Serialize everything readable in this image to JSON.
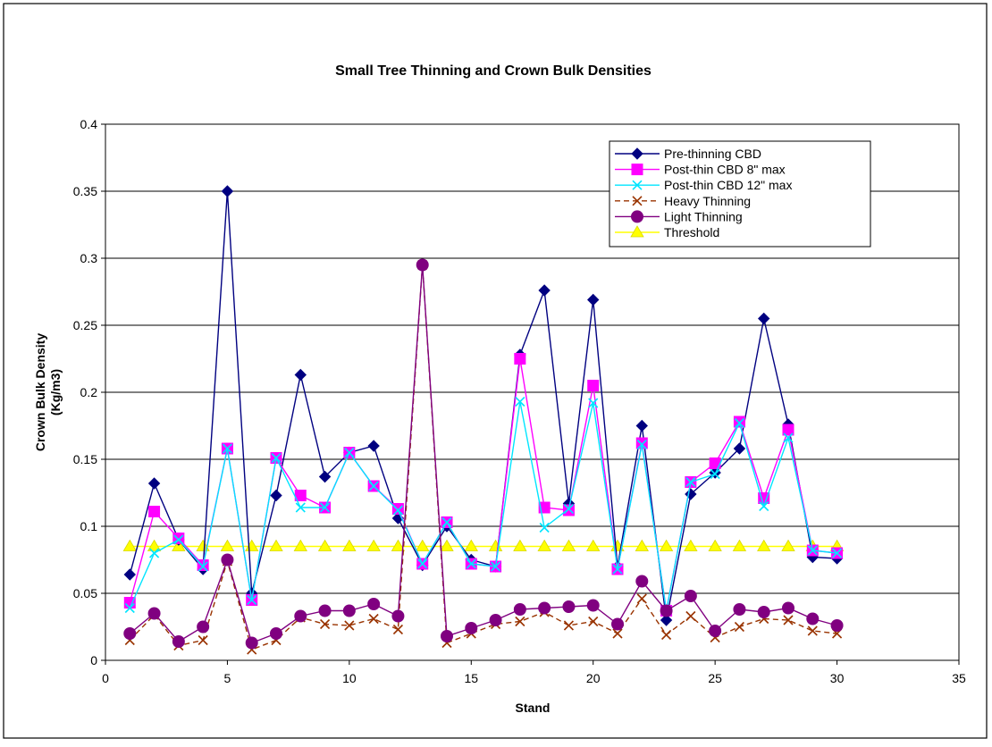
{
  "chart_data": {
    "type": "line",
    "title": "Small Tree Thinning and Crown Bulk Densities",
    "xlabel": "Stand",
    "ylabel_lines": [
      "Crown Bulk Density",
      "(Kg/m3)"
    ],
    "xlim": [
      0,
      35
    ],
    "ylim": [
      0,
      0.4
    ],
    "xticks": [
      "0",
      "5",
      "10",
      "15",
      "20",
      "25",
      "30",
      "35"
    ],
    "yticks": [
      "0",
      "0.05",
      "0.1",
      "0.15",
      "0.2",
      "0.25",
      "0.3",
      "0.35",
      "0.4"
    ],
    "grid": "horizontal",
    "legend_position": "top-right",
    "x": [
      1,
      2,
      3,
      4,
      5,
      6,
      7,
      8,
      9,
      10,
      11,
      12,
      13,
      14,
      15,
      16,
      17,
      18,
      19,
      20,
      21,
      22,
      23,
      24,
      25,
      26,
      27,
      28,
      29,
      30
    ],
    "series": [
      {
        "name": "Pre-thinning CBD",
        "color": "#000080",
        "marker": "diamond",
        "dash": "",
        "values": [
          0.064,
          0.132,
          0.09,
          0.068,
          0.35,
          0.05,
          0.123,
          0.213,
          0.137,
          0.155,
          0.16,
          0.106,
          0.071,
          0.1,
          0.075,
          0.07,
          0.228,
          0.276,
          0.117,
          0.269,
          0.07,
          0.175,
          0.03,
          0.124,
          0.14,
          0.158,
          0.255,
          0.176,
          0.077,
          0.076
        ]
      },
      {
        "name": "Post-thin CBD 8\" max",
        "color": "#FF00FF",
        "marker": "square",
        "dash": "",
        "values": [
          0.043,
          0.111,
          0.091,
          0.071,
          0.158,
          0.045,
          0.151,
          0.123,
          0.114,
          0.155,
          0.13,
          0.113,
          0.072,
          0.103,
          0.072,
          0.07,
          0.225,
          0.114,
          0.112,
          0.205,
          0.068,
          0.162,
          0.037,
          0.133,
          0.147,
          0.178,
          0.121,
          0.172,
          0.082,
          0.08
        ]
      },
      {
        "name": "Post-thin CBD 12\" max",
        "color": "#00E5FF",
        "marker": "x",
        "dash": "",
        "values": [
          0.039,
          0.08,
          0.09,
          0.07,
          0.158,
          0.045,
          0.151,
          0.114,
          0.114,
          0.155,
          0.13,
          0.112,
          0.072,
          0.103,
          0.072,
          0.07,
          0.193,
          0.099,
          0.113,
          0.192,
          0.068,
          0.161,
          0.037,
          0.133,
          0.139,
          0.177,
          0.115,
          0.166,
          0.082,
          0.08
        ]
      },
      {
        "name": "Heavy Thinning",
        "color": "#993300",
        "marker": "x",
        "dash": "6,4",
        "values": [
          0.015,
          0.034,
          0.011,
          0.015,
          0.074,
          0.008,
          0.015,
          0.032,
          0.027,
          0.026,
          0.031,
          0.023,
          0.295,
          0.013,
          0.02,
          0.027,
          0.029,
          0.036,
          0.026,
          0.029,
          0.02,
          0.046,
          0.019,
          0.033,
          0.017,
          0.025,
          0.031,
          0.03,
          0.022,
          0.02
        ]
      },
      {
        "name": "Light Thinning",
        "color": "#800080",
        "marker": "circle",
        "dash": "",
        "values": [
          0.02,
          0.035,
          0.014,
          0.025,
          0.075,
          0.013,
          0.02,
          0.033,
          0.037,
          0.037,
          0.042,
          0.033,
          0.295,
          0.018,
          0.024,
          0.03,
          0.038,
          0.039,
          0.04,
          0.041,
          0.027,
          0.059,
          0.037,
          0.048,
          0.022,
          0.038,
          0.036,
          0.039,
          0.031,
          0.026
        ]
      },
      {
        "name": "Threshold",
        "color": "#FFFF00",
        "marker": "triangle",
        "dash": "",
        "values": [
          0.085,
          0.085,
          0.085,
          0.085,
          0.085,
          0.085,
          0.085,
          0.085,
          0.085,
          0.085,
          0.085,
          0.085,
          0.085,
          0.085,
          0.085,
          0.085,
          0.085,
          0.085,
          0.085,
          0.085,
          0.085,
          0.085,
          0.085,
          0.085,
          0.085,
          0.085,
          0.085,
          0.085,
          0.085,
          0.085
        ]
      }
    ]
  }
}
